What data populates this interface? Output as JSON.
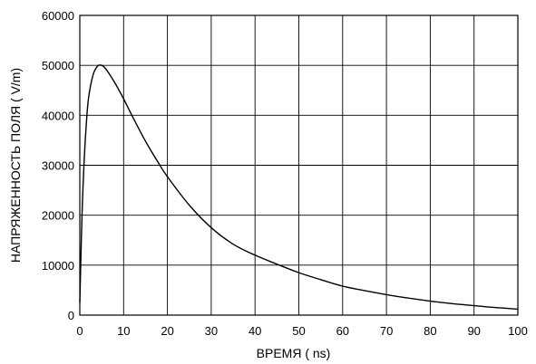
{
  "chart_data": {
    "type": "line",
    "title": "",
    "xlabel": "ВРЕМЯ  ( ns)",
    "ylabel": "НАПРЯЖЕННОСТЬ ПОЛЯ  ( V/m)",
    "xlim": [
      0,
      100
    ],
    "ylim": [
      0,
      60000
    ],
    "x_ticks": [
      "0",
      "10",
      "20",
      "30",
      "40",
      "50",
      "60",
      "70",
      "80",
      "90",
      "100"
    ],
    "y_ticks": [
      "0",
      "10000",
      "20000",
      "30000",
      "40000",
      "50000",
      "60000"
    ],
    "grid": true,
    "legend": "none",
    "series": [
      {
        "x": [
          0,
          0.5,
          1,
          1.5,
          2,
          3,
          4,
          5,
          6,
          8,
          10,
          12,
          15,
          18,
          20,
          25,
          30,
          35,
          40,
          45,
          50,
          55,
          60,
          65,
          70,
          75,
          80,
          85,
          90,
          95,
          100
        ],
        "y": [
          2500,
          20000,
          31000,
          38500,
          43500,
          48000,
          49800,
          50000,
          49200,
          46500,
          43300,
          39800,
          34800,
          30400,
          27700,
          22000,
          17500,
          14200,
          12000,
          10200,
          8500,
          7100,
          5800,
          4900,
          4100,
          3400,
          2800,
          2300,
          1900,
          1500,
          1200
        ],
        "color": "#000000"
      }
    ]
  }
}
